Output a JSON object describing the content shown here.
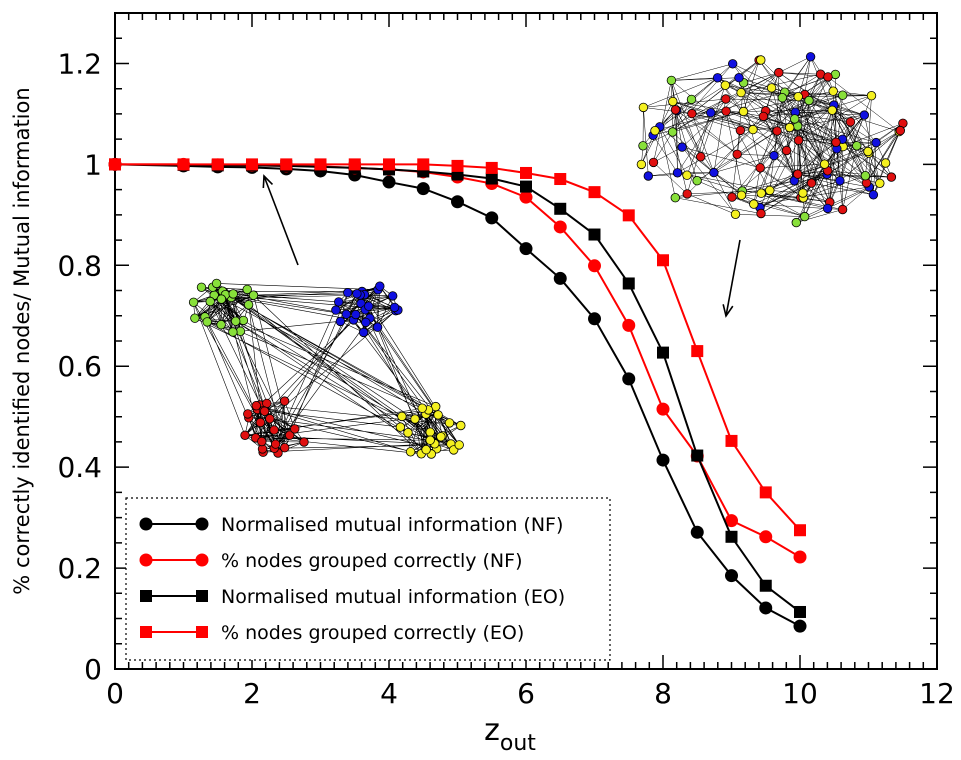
{
  "chart_data": {
    "type": "line",
    "xlabel": "z",
    "xlabel_sub": "out",
    "ylabel": "% correctly identified nodes/ Mutual information",
    "xlim": [
      0,
      12
    ],
    "ylim": [
      0,
      1.3
    ],
    "x_ticks": [
      "0",
      "2",
      "4",
      "6",
      "8",
      "10",
      "12"
    ],
    "y_ticks": [
      "0",
      "0.2",
      "0.4",
      "0.6",
      "0.8",
      "1",
      "1.2"
    ],
    "grid": false,
    "legend_position": "bottom-left",
    "series": [
      {
        "name": "Normalised mutual information (NF)",
        "color": "#000000",
        "marker": "circle",
        "x": [
          0,
          1,
          1.5,
          2,
          2.5,
          3,
          3.5,
          4,
          4.5,
          5,
          5.5,
          6,
          6.5,
          7,
          7.5,
          8,
          8.5,
          9,
          9.5,
          10
        ],
        "y": [
          1.0,
          0.997,
          0.995,
          0.994,
          0.991,
          0.987,
          0.979,
          0.965,
          0.952,
          0.926,
          0.894,
          0.833,
          0.774,
          0.694,
          0.575,
          0.414,
          0.271,
          0.185,
          0.121,
          0.085
        ]
      },
      {
        "name": "% nodes grouped correctly (NF)",
        "color": "#ff0000",
        "marker": "circle",
        "x": [
          0,
          1,
          1.5,
          2,
          2.5,
          3,
          3.5,
          4,
          4.5,
          5,
          5.5,
          6,
          6.5,
          7,
          7.5,
          8,
          8.5,
          9,
          9.5,
          10
        ],
        "y": [
          1.0,
          1.0,
          0.999,
          0.998,
          0.997,
          0.996,
          0.993,
          0.99,
          0.985,
          0.975,
          0.962,
          0.935,
          0.876,
          0.799,
          0.681,
          0.515,
          0.422,
          0.294,
          0.262,
          0.222
        ]
      },
      {
        "name": "Normalised mutual information (EO)",
        "color": "#000000",
        "marker": "square",
        "x": [
          0,
          1,
          1.5,
          2,
          2.5,
          3,
          3.5,
          4,
          4.5,
          5,
          5.5,
          6,
          6.5,
          7,
          7.5,
          8,
          8.5,
          9,
          9.5,
          10
        ],
        "y": [
          1.0,
          0.999,
          0.998,
          0.998,
          0.997,
          0.995,
          0.993,
          0.99,
          0.986,
          0.98,
          0.972,
          0.956,
          0.912,
          0.861,
          0.764,
          0.627,
          0.423,
          0.262,
          0.165,
          0.113
        ]
      },
      {
        "name": "% nodes grouped correctly (EO)",
        "color": "#ff0000",
        "marker": "square",
        "x": [
          0,
          1,
          1.5,
          2,
          2.5,
          3,
          3.5,
          4,
          4.5,
          5,
          5.5,
          6,
          6.5,
          7,
          7.5,
          8,
          8.5,
          9,
          9.5,
          10
        ],
        "y": [
          1.0,
          1.0,
          1.0,
          1.0,
          1.0,
          1.0,
          1.0,
          1.0,
          1.0,
          0.997,
          0.993,
          0.983,
          0.971,
          0.945,
          0.899,
          0.81,
          0.63,
          0.452,
          0.35,
          0.275
        ]
      }
    ],
    "insets": [
      {
        "description": "four well-separated communities",
        "colors": [
          "#88e03a",
          "#1010e0",
          "#e01010",
          "#f4f020"
        ]
      },
      {
        "description": "communities mixed together",
        "colors": [
          "#88e03a",
          "#1010e0",
          "#e01010",
          "#f4f020"
        ]
      }
    ]
  }
}
